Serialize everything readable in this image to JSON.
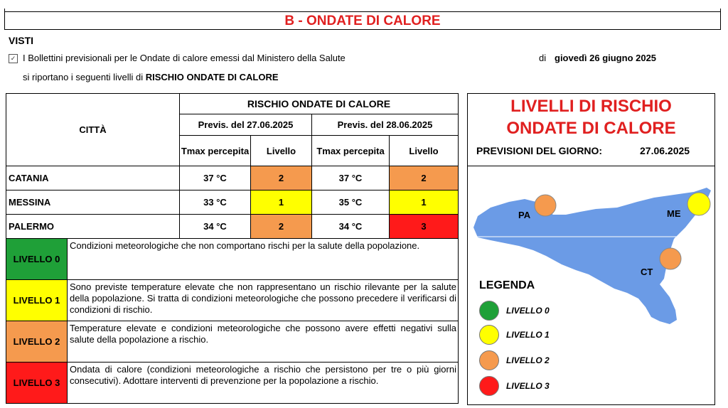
{
  "section_title": "B - ONDATE DI CALORE",
  "visti": "VISTI",
  "checkbox_glyph": "✓",
  "bulletin_line": "I Bollettini previsionali per le Ondate di calore emessi dal Ministero della Salute",
  "di": "di",
  "bulletin_date": "giovedì 26 giugno 2025",
  "report_prefix": "si riportano i seguenti livelli di",
  "report_bold": "RISCHIO ONDATE DI CALORE",
  "table": {
    "city_header": "CITTÀ",
    "risk_header": "RISCHIO ONDATE DI CALORE",
    "day1_header": "Previs. del 27.06.2025",
    "day2_header": "Previs. del 28.06.2025",
    "tmax_label_1": "Tmax percepita",
    "level_label_1": "Livello",
    "tmax_label_2": "Tmax percepita",
    "level_label_2": "Livello",
    "rows": [
      {
        "city": "CATANIA",
        "t1": "37 °C",
        "l1": "2",
        "t2": "37 °C",
        "l2": "2"
      },
      {
        "city": "MESSINA",
        "t1": "33 °C",
        "l1": "1",
        "t2": "35 °C",
        "l2": "1"
      },
      {
        "city": "PALERMO",
        "t1": "34 °C",
        "l1": "2",
        "t2": "34 °C",
        "l2": "3"
      }
    ]
  },
  "levels": [
    {
      "label": "LIVELLO 0",
      "color": "#1fa038",
      "desc": "Condizioni meteorologiche che non comportano rischi per la salute della popolazione."
    },
    {
      "label": "LIVELLO 1",
      "color": "#ffff00",
      "desc": "Sono previste temperature elevate che non rappresentano un rischio rilevante per la salute della popolazione. Si tratta di condizioni meteorologiche che possono precedere il verificarsi di condizioni di rischio."
    },
    {
      "label": "LIVELLO 2",
      "color": "#f59a4e",
      "desc": "Temperature elevate e condizioni meteorologiche che possono avere effetti negativi sulla salute della popolazione a rischio."
    },
    {
      "label": "LIVELLO 3",
      "color": "#ff1a1a",
      "desc": "Ondata di calore (condizioni meteorologiche a rischio che persistono per tre o più giorni consecutivi). Adottare interventi di prevenzione per la popolazione a rischio."
    }
  ],
  "panel": {
    "title_line1": "LIVELLI DI RISCHIO",
    "title_line2": "ONDATE DI CALORE",
    "prev_label": "PREVISIONI DEL GIORNO:",
    "prev_date": "27.06.2025",
    "map_labels": {
      "pa": "PA",
      "me": "ME",
      "ct": "CT"
    },
    "map_colors": {
      "island": "#6b9be6",
      "pa": "#f59a4e",
      "me": "#ffff00",
      "ct": "#f59a4e"
    },
    "legend_title": "LEGENDA",
    "legend": [
      {
        "label": "LIVELLO 0",
        "color": "#1fa038"
      },
      {
        "label": "LIVELLO 1",
        "color": "#ffff00"
      },
      {
        "label": "LIVELLO 2",
        "color": "#f59a4e"
      },
      {
        "label": "LIVELLO 3",
        "color": "#ff1a1a"
      }
    ]
  }
}
